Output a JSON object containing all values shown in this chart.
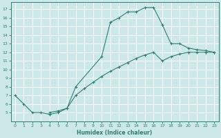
{
  "xlabel": "Humidex (Indice chaleur)",
  "bg_color": "#cde8e8",
  "grid_color": "#ffffff",
  "line_color": "#2e7d72",
  "line1_x": [
    0,
    1,
    2,
    3,
    4,
    5,
    6,
    7,
    10,
    11,
    12,
    13,
    14,
    15,
    16,
    17,
    18,
    19,
    20,
    21,
    22,
    23
  ],
  "line1_y": [
    7,
    6,
    5,
    5,
    4.8,
    5,
    5.5,
    8,
    11.5,
    15.5,
    16,
    16.7,
    16.7,
    17.2,
    17.2,
    15.2,
    13,
    13,
    12.5,
    12.3,
    12.2,
    12
  ],
  "line2_x": [
    4,
    5,
    6,
    7,
    8,
    9,
    10,
    11,
    12,
    13,
    14,
    15,
    16,
    17,
    18,
    19,
    20,
    21,
    22,
    23
  ],
  "line2_y": [
    5,
    5.2,
    5.5,
    7,
    7.8,
    8.5,
    9.2,
    9.8,
    10.3,
    10.8,
    11.3,
    11.7,
    12.0,
    11.0,
    11.5,
    11.8,
    12.0,
    12.0,
    12.0,
    12.0
  ],
  "xlim": [
    -0.5,
    23.5
  ],
  "ylim": [
    4,
    17.8
  ],
  "xticks": [
    0,
    1,
    2,
    3,
    4,
    5,
    6,
    7,
    8,
    9,
    10,
    11,
    12,
    13,
    14,
    15,
    16,
    17,
    18,
    19,
    20,
    21,
    22,
    23
  ],
  "yticks": [
    5,
    6,
    7,
    8,
    9,
    10,
    11,
    12,
    13,
    14,
    15,
    16,
    17
  ]
}
